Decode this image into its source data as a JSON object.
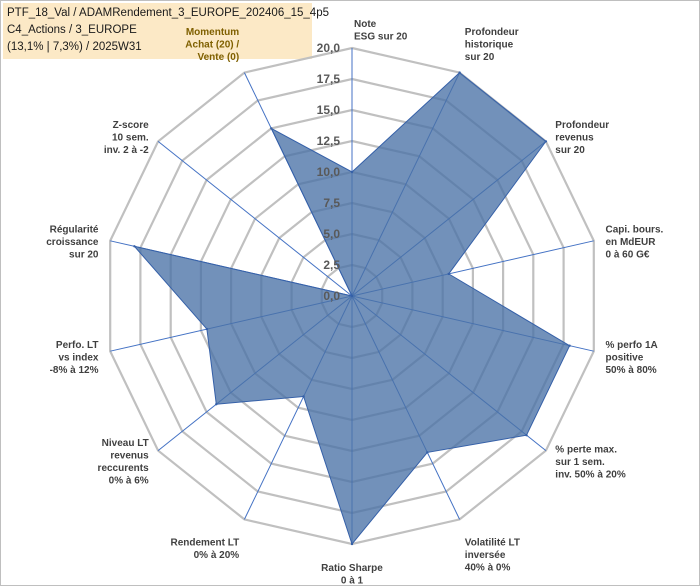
{
  "title_lines": [
    "PTF_18_Val / ADAMRendement_3_EUROPE_202406_15_4p5",
    "C4_Actions / 3_EUROPE",
    "(13,1% | 7,3%) / 2025W31"
  ],
  "chart_data": {
    "type": "radar",
    "rmax": 20,
    "ticks": [
      "0,0",
      "2,5",
      "5,0",
      "7,5",
      "10,0",
      "12,5",
      "15,0",
      "17,5",
      "20,0"
    ],
    "axes": [
      {
        "lines": [
          "Note",
          "ESG sur 20"
        ],
        "value": 10
      },
      {
        "lines": [
          "Profondeur",
          "historique",
          "sur 20"
        ],
        "value": 20
      },
      {
        "lines": [
          "Profondeur",
          "revenus",
          "sur 20"
        ],
        "value": 20
      },
      {
        "lines": [
          "Capi. bours.",
          "en MdEUR",
          "0 à 60 G€"
        ],
        "value": 8
      },
      {
        "lines": [
          "% perfo 1A",
          "positive",
          "50% à 80%"
        ],
        "value": 18
      },
      {
        "lines": [
          "% perte max.",
          "sur 1 sem.",
          "inv. 50% à 20%"
        ],
        "value": 18
      },
      {
        "lines": [
          "Volatilité LT",
          "inversée",
          "40% à 0%"
        ],
        "value": 14
      },
      {
        "lines": [
          "Ratio Sharpe",
          "0 à 1"
        ],
        "value": 20
      },
      {
        "lines": [
          "Rendement LT",
          "0% à 20%"
        ],
        "value": 9
      },
      {
        "lines": [
          "Niveau LT",
          "revenus",
          "reccurents",
          "0% à 6%"
        ],
        "value": 14
      },
      {
        "lines": [
          "Perfo. LT",
          "vs index",
          "-8% à 12%"
        ],
        "value": 12
      },
      {
        "lines": [
          "Régularité",
          "croissance",
          "sur 20"
        ],
        "value": 18
      },
      {
        "lines": [
          "Z-score",
          "10 sem.",
          "inv. 2 à -2"
        ],
        "value": 0
      },
      {
        "lines": [
          "Momentum",
          "Achat (20) /",
          "Vente (0)"
        ],
        "value": 15
      }
    ],
    "colors": {
      "fill": "#4a72a6",
      "line": "#3560a8",
      "grid": "#c0c0c0",
      "spoke": "#4472c4"
    }
  }
}
